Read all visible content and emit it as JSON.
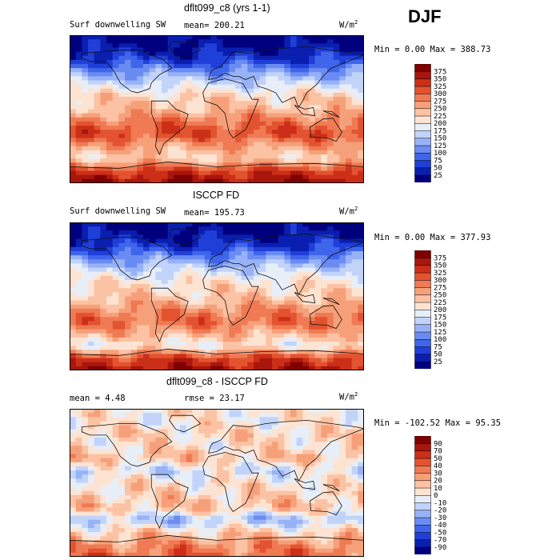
{
  "season": "DJF",
  "panels": [
    {
      "title": "dflt099_c8 (yrs 1-1)",
      "left_label": "Surf downwelling SW",
      "center_label": "mean= 200.21",
      "right_label": "",
      "units": "W/m",
      "units_sup": "2",
      "minmax": "Min =    0.00 Max = 388.73"
    },
    {
      "title": "ISCCP FD",
      "left_label": "Surf downwelling SW",
      "center_label": "mean= 195.73",
      "right_label": "",
      "units": "W/m",
      "units_sup": "2",
      "minmax": "Min =    0.00 Max = 377.93"
    },
    {
      "title": "dflt099_c8 - ISCCP FD",
      "left_label": "mean =    4.48",
      "center_label": "rmse =   23.17",
      "right_label": "",
      "units": "W/m",
      "units_sup": "2",
      "minmax": "Min = -102.52 Max =  95.35"
    }
  ],
  "chart_data": [
    {
      "type": "heatmap",
      "title": "dflt099_c8 (yrs 1-1)",
      "variable": "Surf downwelling SW",
      "units": "W/m2",
      "mean": 200.21,
      "min": 0.0,
      "max": 388.73,
      "colorbar_levels": [
        25,
        50,
        75,
        100,
        125,
        150,
        175,
        200,
        225,
        250,
        275,
        300,
        325,
        350,
        375
      ],
      "colorbar_colors": [
        "#00007f",
        "#0a1fb0",
        "#1f3fd8",
        "#3f66ea",
        "#6a8cf2",
        "#97b2f6",
        "#c2d3fa",
        "#e7eef8",
        "#fde3d2",
        "#fbc2a3",
        "#f6a07a",
        "#ef7a53",
        "#e3532f",
        "#cc2f18",
        "#a8160d",
        "#7f0000"
      ],
      "lat_profile": [
        {
          "lat": 90,
          "value": 10
        },
        {
          "lat": 75,
          "value": 25
        },
        {
          "lat": 60,
          "value": 60
        },
        {
          "lat": 45,
          "value": 125
        },
        {
          "lat": 30,
          "value": 175
        },
        {
          "lat": 15,
          "value": 225
        },
        {
          "lat": 0,
          "value": 240
        },
        {
          "lat": -15,
          "value": 290
        },
        {
          "lat": -30,
          "value": 320
        },
        {
          "lat": -45,
          "value": 260
        },
        {
          "lat": -60,
          "value": 225
        },
        {
          "lat": -75,
          "value": 330
        },
        {
          "lat": -90,
          "value": 375
        }
      ]
    },
    {
      "type": "heatmap",
      "title": "ISCCP FD",
      "variable": "Surf downwelling SW",
      "units": "W/m2",
      "mean": 195.73,
      "min": 0.0,
      "max": 377.93,
      "colorbar_levels": [
        25,
        50,
        75,
        100,
        125,
        150,
        175,
        200,
        225,
        250,
        275,
        300,
        325,
        350,
        375
      ],
      "colorbar_colors": [
        "#00007f",
        "#0a1fb0",
        "#1f3fd8",
        "#3f66ea",
        "#6a8cf2",
        "#97b2f6",
        "#c2d3fa",
        "#e7eef8",
        "#fde3d2",
        "#fbc2a3",
        "#f6a07a",
        "#ef7a53",
        "#e3532f",
        "#cc2f18",
        "#a8160d",
        "#7f0000"
      ],
      "lat_profile": [
        {
          "lat": 90,
          "value": 10
        },
        {
          "lat": 75,
          "value": 25
        },
        {
          "lat": 60,
          "value": 60
        },
        {
          "lat": 45,
          "value": 125
        },
        {
          "lat": 30,
          "value": 175
        },
        {
          "lat": 15,
          "value": 215
        },
        {
          "lat": 0,
          "value": 230
        },
        {
          "lat": -15,
          "value": 270
        },
        {
          "lat": -30,
          "value": 300
        },
        {
          "lat": -45,
          "value": 250
        },
        {
          "lat": -60,
          "value": 200
        },
        {
          "lat": -75,
          "value": 325
        },
        {
          "lat": -90,
          "value": 365
        }
      ]
    },
    {
      "type": "heatmap",
      "title": "dflt099_c8 - ISCCP FD",
      "units": "W/m2",
      "mean": 4.48,
      "rmse": 23.17,
      "min": -102.52,
      "max": 95.35,
      "colorbar_levels": [
        -90,
        -70,
        -50,
        -40,
        -30,
        -20,
        -10,
        0,
        10,
        20,
        30,
        40,
        50,
        70,
        90
      ],
      "colorbar_colors": [
        "#00007f",
        "#0a1fb0",
        "#1f3fd8",
        "#3f66ea",
        "#6a8cf2",
        "#97b2f6",
        "#c2d3fa",
        "#e7eef8",
        "#fde3d2",
        "#fbc2a3",
        "#f6a07a",
        "#ef7a53",
        "#e3532f",
        "#cc2f18",
        "#a8160d",
        "#7f0000"
      ],
      "lat_profile": [
        {
          "lat": 90,
          "value": 5
        },
        {
          "lat": 75,
          "value": 0
        },
        {
          "lat": 60,
          "value": 10
        },
        {
          "lat": 45,
          "value": 5
        },
        {
          "lat": 30,
          "value": 15
        },
        {
          "lat": 15,
          "value": -10
        },
        {
          "lat": 0,
          "value": 5
        },
        {
          "lat": -15,
          "value": 10
        },
        {
          "lat": -30,
          "value": 15
        },
        {
          "lat": -45,
          "value": -20
        },
        {
          "lat": -60,
          "value": 10
        },
        {
          "lat": -75,
          "value": 30
        },
        {
          "lat": -90,
          "value": 40
        }
      ]
    }
  ]
}
